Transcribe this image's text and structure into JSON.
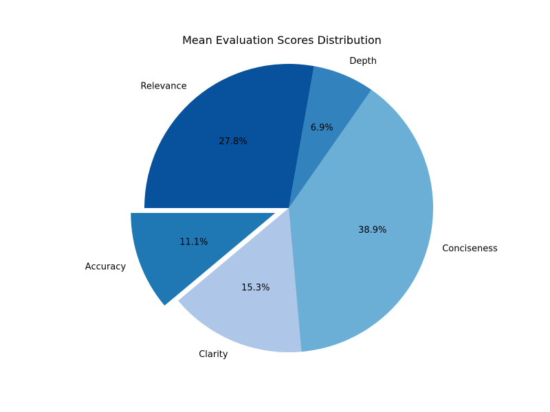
{
  "chart_data": {
    "type": "pie",
    "title": "Mean Evaluation Scores Distribution",
    "slices": [
      {
        "label": "Accuracy",
        "value": 11.1,
        "pct_label": "11.1%",
        "color": "#1f77b4",
        "exploded": true
      },
      {
        "label": "Clarity",
        "value": 15.3,
        "pct_label": "15.3%",
        "color": "#aec7e8",
        "exploded": false
      },
      {
        "label": "Conciseness",
        "value": 38.9,
        "pct_label": "38.9%",
        "color": "#6baed6",
        "exploded": false
      },
      {
        "label": "Depth",
        "value": 6.9,
        "pct_label": "6.9%",
        "color": "#3182bd",
        "exploded": false
      },
      {
        "label": "Relevance",
        "value": 27.8,
        "pct_label": "27.8%",
        "color": "#08519c",
        "exploded": false
      }
    ],
    "start_angle_deg": 180,
    "direction": "counterclockwise",
    "legend": "none"
  }
}
